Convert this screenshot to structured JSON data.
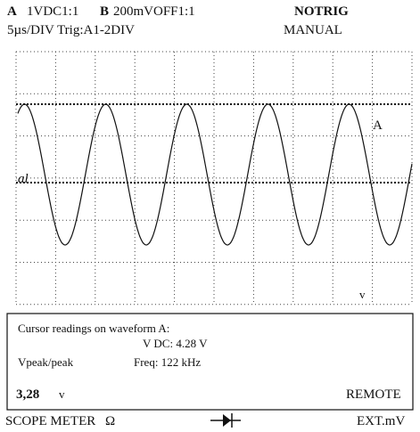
{
  "header": {
    "channel_a": "A",
    "channel_a_setting": "1VDC1:1",
    "channel_b": "B",
    "channel_b_setting": "200mVOFF1:1",
    "trigger_status": "NOTRIG",
    "timebase": "5µs/DIV Trig:A1-2DIV",
    "trigger_mode": "MANUAL"
  },
  "display": {
    "trace_label": "A",
    "cursor_label": "al",
    "marker": "v"
  },
  "readings": {
    "title": "Cursor readings on waveform A:",
    "vdc": "V DC: 4.28 V",
    "measure": "Vpeak/peak",
    "freq": "Freq: 122 kHz",
    "value": "3,28",
    "unit": "v",
    "status": "REMOTE"
  },
  "footer": {
    "mode": "SCOPE METER",
    "ohm": "Ω",
    "ext": "EXT.mV"
  }
}
